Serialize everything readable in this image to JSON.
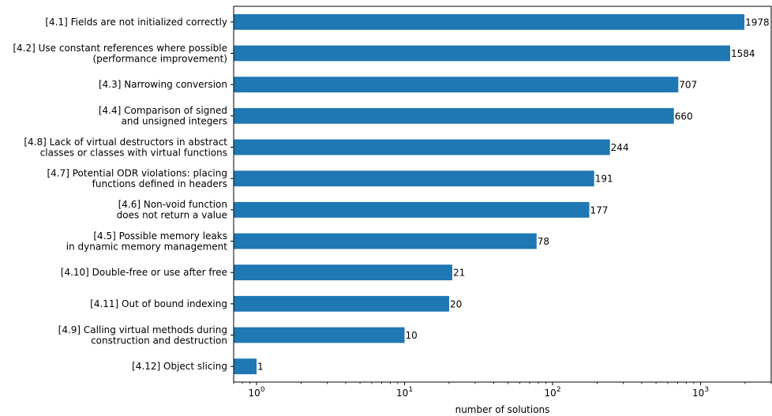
{
  "chart_data": {
    "type": "bar",
    "orientation": "horizontal",
    "categories": [
      [
        "[4.1] Fields are not initialized correctly"
      ],
      [
        "[4.2] Use constant references where possible",
        "(performance improvement)"
      ],
      [
        "[4.3] Narrowing conversion"
      ],
      [
        "[4.4] Comparison of signed",
        "and unsigned integers"
      ],
      [
        "[4.8] Lack of virtual destructors in abstract",
        "classes or classes with virtual functions"
      ],
      [
        "[4.7] Potential ODR violations: placing",
        "functions defined in headers"
      ],
      [
        "[4.6] Non-void function",
        "does not return a value"
      ],
      [
        "[4.5] Possible memory leaks",
        "in dynamic memory management"
      ],
      [
        "[4.10] Double-free or use after free"
      ],
      [
        "[4.11] Out of bound indexing"
      ],
      [
        "[4.9] Calling virtual methods during",
        "construction and destruction"
      ],
      [
        "[4.12] Object slicing"
      ]
    ],
    "values": [
      1978,
      1584,
      707,
      660,
      244,
      191,
      177,
      78,
      21,
      20,
      10,
      1
    ],
    "value_labels": [
      "1978",
      "1584",
      "707",
      "660",
      "244",
      "191",
      "177",
      "78",
      "21",
      "20",
      "10",
      "1"
    ],
    "xlabel": "number of solutions",
    "xscale": "log",
    "xlim": [
      0.7,
      3000
    ],
    "xticks": [
      {
        "value": 1,
        "base": "10",
        "exp": "0"
      },
      {
        "value": 10,
        "base": "10",
        "exp": "1"
      },
      {
        "value": 100,
        "base": "10",
        "exp": "2"
      },
      {
        "value": 1000,
        "base": "10",
        "exp": "3"
      }
    ],
    "grid": false,
    "bar_color": "#1f77b4"
  }
}
